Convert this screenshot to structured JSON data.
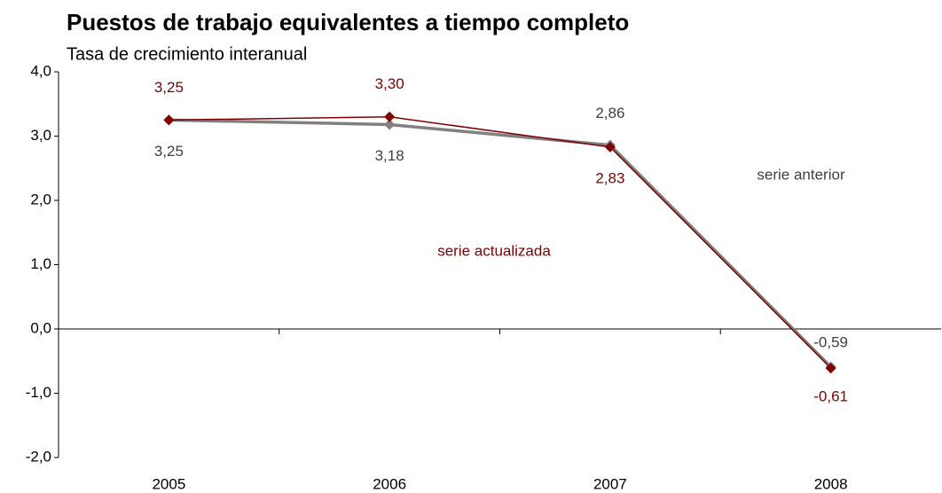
{
  "chart_data": {
    "type": "line",
    "title": "Puestos de trabajo equivalentes a tiempo completo",
    "subtitle": "Tasa de crecimiento interanual",
    "categories": [
      "2005",
      "2006",
      "2007",
      "2008"
    ],
    "series": [
      {
        "name": "serie anterior",
        "color": "#808080",
        "values": [
          3.25,
          3.18,
          2.86,
          -0.59
        ],
        "value_labels": [
          "3,25",
          "3,18",
          "2,86",
          "-0,59"
        ]
      },
      {
        "name": "serie actualizada",
        "color": "#800000",
        "values": [
          3.25,
          3.3,
          2.83,
          -0.61
        ],
        "value_labels": [
          "3,25",
          "3,30",
          "2,83",
          "-0,61"
        ]
      }
    ],
    "ylim": [
      -2,
      4
    ],
    "yticks": [
      {
        "value": -2,
        "label": "-2,0"
      },
      {
        "value": -1,
        "label": "-1,0"
      },
      {
        "value": 0,
        "label": "0,0"
      },
      {
        "value": 1,
        "label": "1,0"
      },
      {
        "value": 2,
        "label": "2,0"
      },
      {
        "value": 3,
        "label": "3,0"
      },
      {
        "value": 4,
        "label": "4,0"
      }
    ],
    "grid": false
  }
}
